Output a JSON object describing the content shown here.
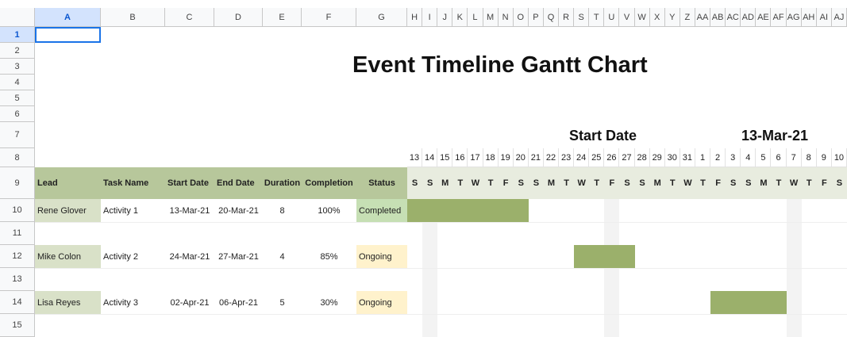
{
  "sheet": {
    "columns": [
      "A",
      "B",
      "C",
      "D",
      "E",
      "F",
      "G",
      "H",
      "I",
      "J",
      "K",
      "L",
      "M",
      "N",
      "O",
      "P",
      "Q",
      "R",
      "S",
      "T",
      "U",
      "V",
      "W",
      "X",
      "Y",
      "Z",
      "AA",
      "AB",
      "AC",
      "AD",
      "AE",
      "AF",
      "AG",
      "AH",
      "AI",
      "AJ"
    ],
    "rows": [
      1,
      2,
      3,
      4,
      5,
      6,
      7,
      8,
      9,
      10,
      11,
      12,
      13,
      14,
      15
    ]
  },
  "header": {
    "title": "Event Timeline Gantt Chart",
    "start_label": "Start Date",
    "start_date": "13-Mar-21"
  },
  "timeline": {
    "dates": [
      13,
      14,
      15,
      16,
      17,
      18,
      19,
      20,
      21,
      22,
      23,
      24,
      25,
      26,
      27,
      28,
      29,
      30,
      31,
      1,
      2,
      3,
      4,
      5,
      6,
      7,
      8,
      9,
      10
    ],
    "weekdays": [
      "S",
      "S",
      "M",
      "T",
      "W",
      "T",
      "F",
      "S",
      "S",
      "M",
      "T",
      "W",
      "T",
      "F",
      "S",
      "S",
      "M",
      "T",
      "W",
      "T",
      "F",
      "S",
      "S",
      "M",
      "T",
      "W",
      "T",
      "F",
      "S"
    ]
  },
  "table": {
    "headers": [
      "Lead",
      "Task Name",
      "Start Date",
      "End Date",
      "Duration",
      "Completion",
      "Status"
    ],
    "rows": [
      [
        "Rene Glover",
        "Activity 1",
        "13-Mar-21",
        "20-Mar-21",
        8,
        "100%",
        "Completed"
      ],
      [
        "Mike Colon",
        "Activity 2",
        "24-Mar-21",
        "27-Mar-21",
        4,
        "85%",
        "Ongoing"
      ],
      [
        "Lisa Reyes",
        "Activity 3",
        "02-Apr-21",
        "06-Apr-21",
        5,
        "30%",
        "Ongoing"
      ]
    ]
  }
}
